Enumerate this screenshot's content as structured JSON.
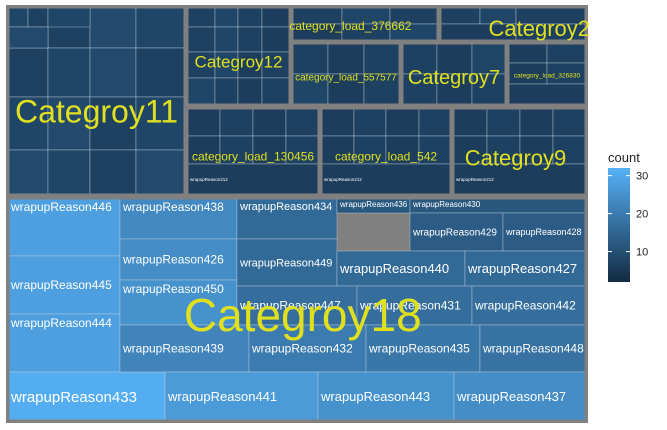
{
  "chart_data": {
    "type": "treemap",
    "title": "",
    "groups": [
      {
        "name": "Categroy11",
        "tiles": [
          {
            "label": "",
            "count": 8
          },
          {
            "label": "",
            "count": 7
          },
          {
            "label": "",
            "count": 9
          },
          {
            "label": "",
            "count": 8
          },
          {
            "label": "",
            "count": 7
          },
          {
            "label": "",
            "count": 8
          },
          {
            "label": "",
            "count": 9
          },
          {
            "label": "",
            "count": 7
          },
          {
            "label": "",
            "count": 8
          },
          {
            "label": "",
            "count": 9
          },
          {
            "label": "",
            "count": 7
          },
          {
            "label": "",
            "count": 8
          },
          {
            "label": "",
            "count": 9
          },
          {
            "label": "",
            "count": 8
          },
          {
            "label": "",
            "count": 7
          },
          {
            "label": "",
            "count": 9
          },
          {
            "label": "",
            "count": 8
          },
          {
            "label": "",
            "count": 7
          },
          {
            "label": "",
            "count": 9
          },
          {
            "label": "",
            "count": 8
          }
        ]
      },
      {
        "name": "Categroy12",
        "tiles": [
          {
            "label": "",
            "count": 7
          },
          {
            "label": "",
            "count": 8
          },
          {
            "label": "",
            "count": 7
          },
          {
            "label": "",
            "count": 6
          },
          {
            "label": "",
            "count": 7
          },
          {
            "label": "",
            "count": 8
          },
          {
            "label": "",
            "count": 7
          },
          {
            "label": "",
            "count": 6
          },
          {
            "label": "",
            "count": 7
          },
          {
            "label": "",
            "count": 8
          },
          {
            "label": "",
            "count": 6
          },
          {
            "label": "",
            "count": 7
          },
          {
            "label": "",
            "count": 8
          },
          {
            "label": "",
            "count": 7
          },
          {
            "label": "",
            "count": 6
          },
          {
            "label": "",
            "count": 7
          }
        ]
      },
      {
        "name": "category_load_376662",
        "tiles": [
          {
            "label": "",
            "count": 7
          },
          {
            "label": "",
            "count": 8
          },
          {
            "label": "",
            "count": 7
          },
          {
            "label": "",
            "count": 6
          },
          {
            "label": "",
            "count": 7
          },
          {
            "label": "",
            "count": 8
          }
        ]
      },
      {
        "name": "Categroy2",
        "tiles": [
          {
            "label": "",
            "count": 7
          },
          {
            "label": "",
            "count": 8
          },
          {
            "label": "",
            "count": 7
          },
          {
            "label": "",
            "count": 6
          },
          {
            "label": "",
            "count": 7
          }
        ]
      },
      {
        "name": "category_load_557577",
        "tiles": [
          {
            "label": "",
            "count": 7
          },
          {
            "label": "",
            "count": 6
          },
          {
            "label": "",
            "count": 7
          },
          {
            "label": "",
            "count": 8
          },
          {
            "label": "",
            "count": 6
          },
          {
            "label": "",
            "count": 7
          }
        ]
      },
      {
        "name": "Categroy7",
        "tiles": [
          {
            "label": "",
            "count": 7
          },
          {
            "label": "",
            "count": 6
          },
          {
            "label": "",
            "count": 8
          },
          {
            "label": "",
            "count": 7
          },
          {
            "label": "",
            "count": 6
          },
          {
            "label": "",
            "count": 7
          }
        ]
      },
      {
        "name": "category_load_326830",
        "tiles": [
          {
            "label": "",
            "count": 6
          },
          {
            "label": "",
            "count": 7
          },
          {
            "label": "",
            "count": 6
          },
          {
            "label": "",
            "count": 7
          },
          {
            "label": "",
            "count": 6
          }
        ]
      },
      {
        "name": "category_load_130456",
        "tiles": [
          {
            "label": "",
            "count": 6
          },
          {
            "label": "",
            "count": 7
          },
          {
            "label": "",
            "count": 6
          },
          {
            "label": "",
            "count": 7
          },
          {
            "label": "",
            "count": 6
          },
          {
            "label": "",
            "count": 7
          },
          {
            "label": "",
            "count": 6
          },
          {
            "label": "",
            "count": 7
          },
          {
            "label": "wrapupReason212",
            "count": 6
          }
        ]
      },
      {
        "name": "category_load_542",
        "tiles": [
          {
            "label": "",
            "count": 6
          },
          {
            "label": "",
            "count": 7
          },
          {
            "label": "",
            "count": 6
          },
          {
            "label": "",
            "count": 7
          },
          {
            "label": "",
            "count": 6
          },
          {
            "label": "",
            "count": 7
          },
          {
            "label": "",
            "count": 6
          },
          {
            "label": "",
            "count": 7
          },
          {
            "label": "wrapupReason212",
            "count": 6
          }
        ]
      },
      {
        "name": "Categroy9",
        "tiles": [
          {
            "label": "",
            "count": 6
          },
          {
            "label": "",
            "count": 7
          },
          {
            "label": "",
            "count": 6
          },
          {
            "label": "",
            "count": 7
          },
          {
            "label": "",
            "count": 6
          },
          {
            "label": "",
            "count": 7
          },
          {
            "label": "",
            "count": 6
          },
          {
            "label": "",
            "count": 7
          },
          {
            "label": "wrapupReason212",
            "count": 6
          }
        ]
      },
      {
        "name": "Categroy18",
        "tiles": [
          {
            "label": "wrapupReason446",
            "count": 28
          },
          {
            "label": "wrapupReason445",
            "count": 28
          },
          {
            "label": "wrapupReason444",
            "count": 28
          },
          {
            "label": "wrapupReason433",
            "count": 31
          },
          {
            "label": "wrapupReason438",
            "count": 23
          },
          {
            "label": "wrapupReason426",
            "count": 24
          },
          {
            "label": "wrapupReason450",
            "count": 25
          },
          {
            "label": "wrapupReason434",
            "count": 16
          },
          {
            "label": "wrapupReason449",
            "count": 16
          },
          {
            "label": "wrapupReason436",
            "count": 12
          },
          {
            "label": "wrapupReason430",
            "count": 12
          },
          {
            "label": "wrapupReason429",
            "count": 13
          },
          {
            "label": "wrapupReason428",
            "count": 13
          },
          {
            "label": "wrapupReason440",
            "count": 16
          },
          {
            "label": "wrapupReason427",
            "count": 16
          },
          {
            "label": "wrapupReason447",
            "count": 17
          },
          {
            "label": "wrapupReason431",
            "count": 17
          },
          {
            "label": "wrapupReason442",
            "count": 17
          },
          {
            "label": "wrapupReason439",
            "count": 22
          },
          {
            "label": "wrapupReason432",
            "count": 20
          },
          {
            "label": "wrapupReason435",
            "count": 19
          },
          {
            "label": "wrapupReason448",
            "count": 18
          },
          {
            "label": "wrapupReason441",
            "count": 27
          },
          {
            "label": "wrapupReason443",
            "count": 25
          },
          {
            "label": "wrapupReason437",
            "count": 24
          }
        ]
      }
    ],
    "legend": {
      "title": "count",
      "ticks": [
        10,
        20,
        30
      ],
      "range": [
        2,
        32
      ],
      "placement": "right",
      "low_color": "#132b43",
      "high_color": "#56b1f7"
    },
    "colors": {
      "border": "#808080",
      "group_label": "#e0e01f",
      "tile_label": "#ffffff"
    }
  }
}
